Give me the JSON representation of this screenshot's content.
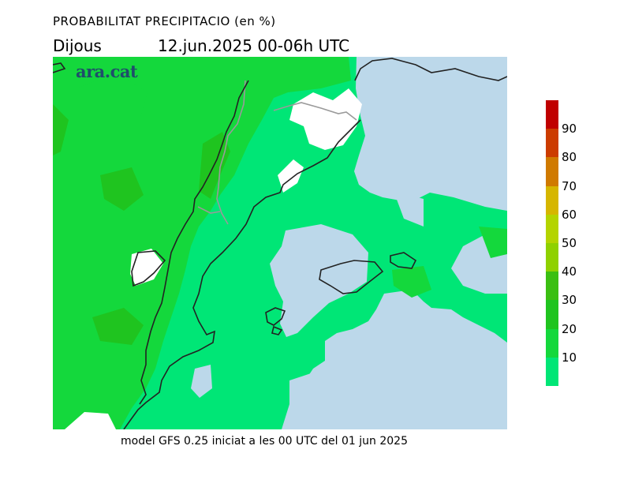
{
  "title": "PROBABILITAT PRECIPITACIO (en %)",
  "subtitle_day": "Dijous",
  "subtitle_date": "12.jun.2025 00-06h UTC",
  "logo": "ara.cat",
  "footer": "model GFS 0.25 iniciat a les 00 UTC del 01 jun 2025",
  "legend": {
    "levels": [
      {
        "label": "10",
        "color": "#00e676"
      },
      {
        "label": "20",
        "color": "#14d83c"
      },
      {
        "label": "30",
        "color": "#1fc41f"
      },
      {
        "label": "40",
        "color": "#3bbf12"
      },
      {
        "label": "50",
        "color": "#8fd100"
      },
      {
        "label": "60",
        "color": "#b4d400"
      },
      {
        "label": "70",
        "color": "#d6b600"
      },
      {
        "label": "80",
        "color": "#d07a00"
      },
      {
        "label": "90",
        "color": "#cc3c00"
      }
    ],
    "top_color": "#c00000"
  },
  "map_colors": {
    "sea_low": "#bcd8ea",
    "p10": "#00e676",
    "p20": "#14d83c",
    "p30": "#1fc41f",
    "land_no_rain": "#ffffff",
    "coast": "#222222",
    "border": "#9a9a9a"
  }
}
